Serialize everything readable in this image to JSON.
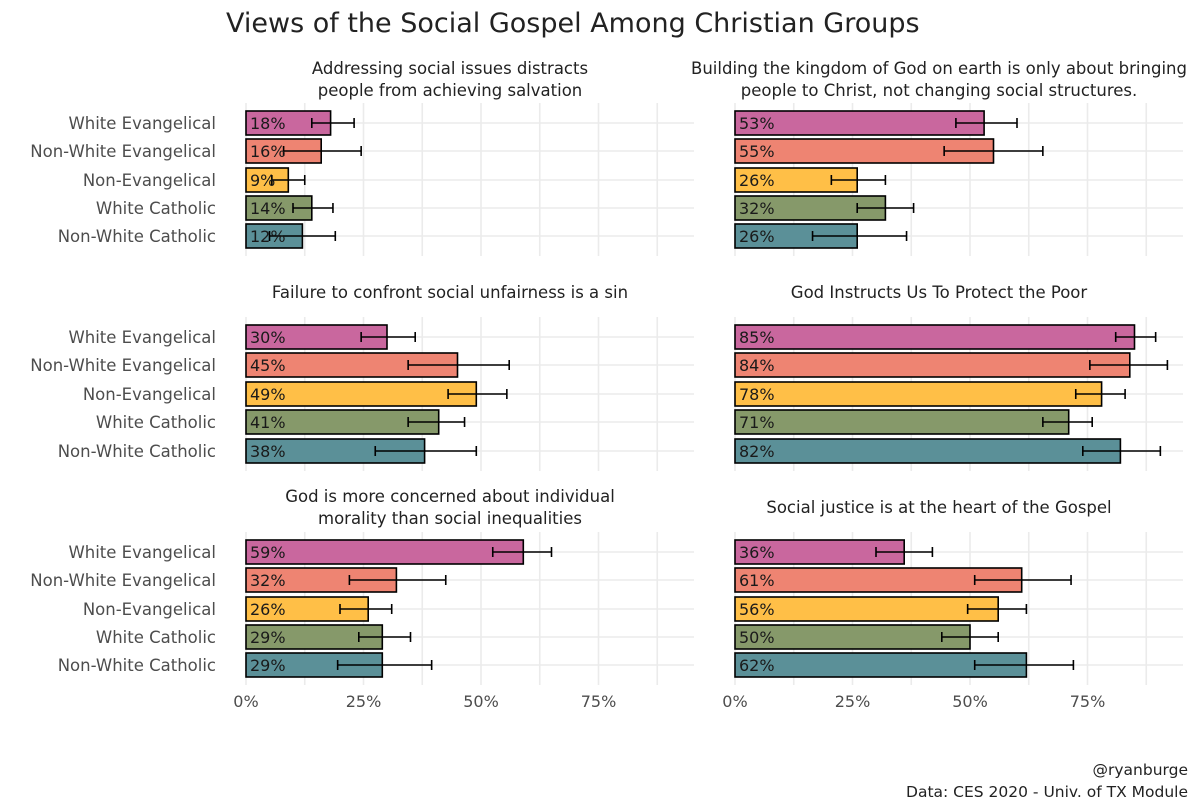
{
  "title": "Views of the Social Gospel Among Christian Groups",
  "caption": [
    "@ryanburge",
    "Data: CES 2020 - Univ. of TX Module"
  ],
  "chart_data": {
    "type": "bar",
    "orientation": "horizontal",
    "xlim": [
      0,
      0.95
    ],
    "x_ticks": [
      0,
      0.25,
      0.5,
      0.75
    ],
    "x_tick_labels": [
      "0%",
      "25%",
      "50%",
      "75%"
    ],
    "grid": true,
    "categories": [
      "White Evangelical",
      "Non-White Evangelical",
      "Non-Evangelical",
      "White Catholic",
      "Non-White Catholic"
    ],
    "colors": [
      "#C9679E",
      "#EE8472",
      "#FFBF47",
      "#86996A",
      "#5B9098"
    ],
    "panels": [
      {
        "title": [
          "Addressing social issues distracts",
          "people from achieving salvation"
        ],
        "values": [
          0.18,
          0.16,
          0.09,
          0.14,
          0.12
        ],
        "labels": [
          "18%",
          "16%",
          "9%",
          "14%",
          "12%"
        ],
        "error_low": [
          0.14,
          0.08,
          0.055,
          0.1,
          0.05
        ],
        "error_high": [
          0.23,
          0.245,
          0.125,
          0.185,
          0.19
        ]
      },
      {
        "title": [
          "Building the kingdom of God on earth is only about bringing",
          "people to Christ, not changing social structures."
        ],
        "values": [
          0.53,
          0.55,
          0.26,
          0.32,
          0.26
        ],
        "labels": [
          "53%",
          "55%",
          "26%",
          "32%",
          "26%"
        ],
        "error_low": [
          0.47,
          0.445,
          0.205,
          0.26,
          0.165
        ],
        "error_high": [
          0.6,
          0.655,
          0.32,
          0.38,
          0.365
        ]
      },
      {
        "title": [
          "Failure to confront social unfairness is a sin"
        ],
        "values": [
          0.3,
          0.45,
          0.49,
          0.41,
          0.38
        ],
        "labels": [
          "30%",
          "45%",
          "49%",
          "41%",
          "38%"
        ],
        "error_low": [
          0.245,
          0.345,
          0.43,
          0.345,
          0.275
        ],
        "error_high": [
          0.36,
          0.56,
          0.555,
          0.465,
          0.49
        ]
      },
      {
        "title": [
          "God Instructs Us To Protect the Poor"
        ],
        "values": [
          0.85,
          0.84,
          0.78,
          0.71,
          0.82
        ],
        "labels": [
          "85%",
          "84%",
          "78%",
          "71%",
          "82%"
        ],
        "error_low": [
          0.81,
          0.755,
          0.725,
          0.655,
          0.74
        ],
        "error_high": [
          0.895,
          0.92,
          0.83,
          0.76,
          0.905
        ]
      },
      {
        "title": [
          "God is more concerned about individual",
          "morality than social inequalities"
        ],
        "values": [
          0.59,
          0.32,
          0.26,
          0.29,
          0.29
        ],
        "labels": [
          "59%",
          "32%",
          "26%",
          "29%",
          "29%"
        ],
        "error_low": [
          0.525,
          0.22,
          0.2,
          0.24,
          0.195
        ],
        "error_high": [
          0.65,
          0.425,
          0.31,
          0.35,
          0.395
        ]
      },
      {
        "title": [
          "Social justice is at the heart of the Gospel"
        ],
        "values": [
          0.36,
          0.61,
          0.56,
          0.5,
          0.62
        ],
        "labels": [
          "36%",
          "61%",
          "56%",
          "50%",
          "62%"
        ],
        "error_low": [
          0.3,
          0.51,
          0.495,
          0.44,
          0.51
        ],
        "error_high": [
          0.42,
          0.715,
          0.62,
          0.56,
          0.72
        ]
      }
    ]
  }
}
